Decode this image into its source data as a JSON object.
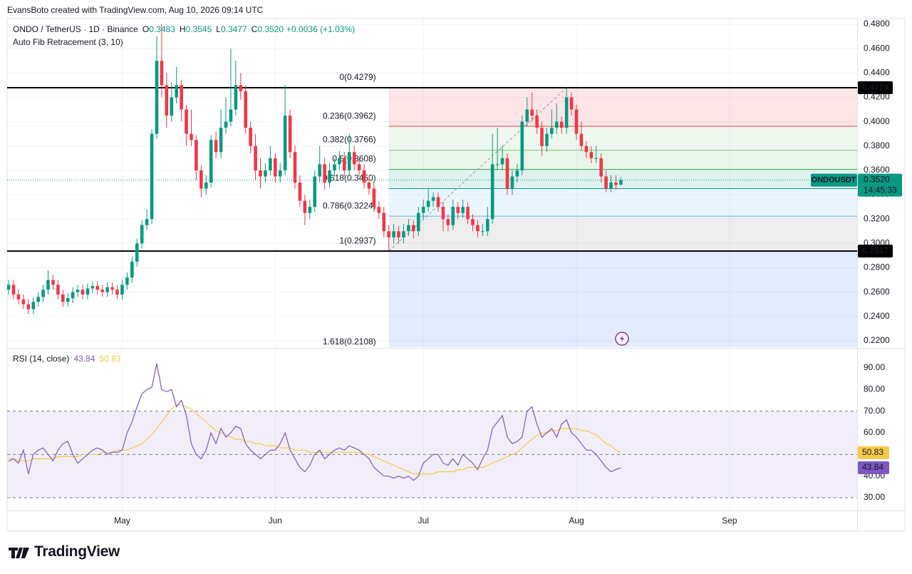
{
  "header": {
    "credit": "EvansBoto created with TradingView.com, Aug 10, 2026 09:14 UTC",
    "brand": "TradingView"
  },
  "chart_data": {
    "type": "candlestick",
    "title": "ONDO / TetherUS · 1D · Binance",
    "indicator": "Auto Fib Retracement (3, 10)",
    "ohlc_labels": [
      {
        "key": "O",
        "value": "0.3483"
      },
      {
        "key": "H",
        "value": "0.3545"
      },
      {
        "key": "L",
        "value": "0.3477"
      },
      {
        "key": "C",
        "value": "0.3520"
      }
    ],
    "change_label": "+0.0036 (+1.03%)",
    "up_color": "#089981",
    "down_color": "#f23645",
    "candles": [
      [
        0.262,
        0.27,
        0.258,
        0.266
      ],
      [
        0.266,
        0.27,
        0.254,
        0.258
      ],
      [
        0.258,
        0.262,
        0.25,
        0.254
      ],
      [
        0.254,
        0.258,
        0.246,
        0.25
      ],
      [
        0.25,
        0.254,
        0.242,
        0.246
      ],
      [
        0.246,
        0.256,
        0.242,
        0.252
      ],
      [
        0.252,
        0.26,
        0.248,
        0.256
      ],
      [
        0.256,
        0.266,
        0.252,
        0.262
      ],
      [
        0.262,
        0.278,
        0.258,
        0.27
      ],
      [
        0.27,
        0.274,
        0.262,
        0.266
      ],
      [
        0.266,
        0.27,
        0.254,
        0.258
      ],
      [
        0.258,
        0.262,
        0.248,
        0.252
      ],
      [
        0.252,
        0.259,
        0.248,
        0.255
      ],
      [
        0.255,
        0.264,
        0.251,
        0.26
      ],
      [
        0.26,
        0.266,
        0.256,
        0.262
      ],
      [
        0.262,
        0.266,
        0.254,
        0.258
      ],
      [
        0.258,
        0.267,
        0.254,
        0.263
      ],
      [
        0.263,
        0.269,
        0.259,
        0.265
      ],
      [
        0.265,
        0.269,
        0.258,
        0.262
      ],
      [
        0.262,
        0.266,
        0.256,
        0.26
      ],
      [
        0.26,
        0.268,
        0.256,
        0.264
      ],
      [
        0.264,
        0.268,
        0.258,
        0.262
      ],
      [
        0.262,
        0.266,
        0.254,
        0.258
      ],
      [
        0.258,
        0.27,
        0.254,
        0.266
      ],
      [
        0.266,
        0.276,
        0.262,
        0.272
      ],
      [
        0.272,
        0.289,
        0.268,
        0.285
      ],
      [
        0.285,
        0.304,
        0.281,
        0.3
      ],
      [
        0.3,
        0.319,
        0.296,
        0.315
      ],
      [
        0.315,
        0.328,
        0.311,
        0.32
      ],
      [
        0.32,
        0.394,
        0.316,
        0.39
      ],
      [
        0.39,
        0.47,
        0.386,
        0.45
      ],
      [
        0.45,
        0.48,
        0.42,
        0.43
      ],
      [
        0.43,
        0.44,
        0.395,
        0.405
      ],
      [
        0.405,
        0.432,
        0.4,
        0.42
      ],
      [
        0.42,
        0.445,
        0.415,
        0.43
      ],
      [
        0.43,
        0.434,
        0.4,
        0.41
      ],
      [
        0.41,
        0.414,
        0.38,
        0.39
      ],
      [
        0.39,
        0.41,
        0.38,
        0.385
      ],
      [
        0.385,
        0.389,
        0.352,
        0.36
      ],
      [
        0.36,
        0.364,
        0.338,
        0.345
      ],
      [
        0.345,
        0.356,
        0.34,
        0.35
      ],
      [
        0.35,
        0.389,
        0.346,
        0.385
      ],
      [
        0.385,
        0.392,
        0.37,
        0.375
      ],
      [
        0.375,
        0.41,
        0.37,
        0.395
      ],
      [
        0.395,
        0.42,
        0.39,
        0.4
      ],
      [
        0.4,
        0.46,
        0.396,
        0.41
      ],
      [
        0.41,
        0.45,
        0.405,
        0.43
      ],
      [
        0.43,
        0.44,
        0.418,
        0.425
      ],
      [
        0.425,
        0.43,
        0.39,
        0.395
      ],
      [
        0.395,
        0.4,
        0.374,
        0.38
      ],
      [
        0.38,
        0.39,
        0.352,
        0.36
      ],
      [
        0.36,
        0.37,
        0.345,
        0.355
      ],
      [
        0.355,
        0.366,
        0.35,
        0.36
      ],
      [
        0.36,
        0.38,
        0.356,
        0.37
      ],
      [
        0.37,
        0.374,
        0.35,
        0.355
      ],
      [
        0.355,
        0.366,
        0.35,
        0.36
      ],
      [
        0.36,
        0.43,
        0.356,
        0.405
      ],
      [
        0.405,
        0.41,
        0.37,
        0.375
      ],
      [
        0.375,
        0.38,
        0.345,
        0.35
      ],
      [
        0.35,
        0.356,
        0.33,
        0.335
      ],
      [
        0.335,
        0.34,
        0.315,
        0.325
      ],
      [
        0.325,
        0.336,
        0.32,
        0.33
      ],
      [
        0.33,
        0.36,
        0.326,
        0.355
      ],
      [
        0.355,
        0.38,
        0.35,
        0.365
      ],
      [
        0.365,
        0.37,
        0.344,
        0.35
      ],
      [
        0.35,
        0.366,
        0.346,
        0.36
      ],
      [
        0.36,
        0.37,
        0.355,
        0.365
      ],
      [
        0.365,
        0.376,
        0.36,
        0.37
      ],
      [
        0.37,
        0.375,
        0.355,
        0.36
      ],
      [
        0.36,
        0.39,
        0.356,
        0.375
      ],
      [
        0.375,
        0.38,
        0.36,
        0.365
      ],
      [
        0.365,
        0.37,
        0.355,
        0.36
      ],
      [
        0.36,
        0.365,
        0.345,
        0.35
      ],
      [
        0.35,
        0.356,
        0.34,
        0.345
      ],
      [
        0.345,
        0.35,
        0.326,
        0.33
      ],
      [
        0.33,
        0.335,
        0.32,
        0.325
      ],
      [
        0.325,
        0.33,
        0.305,
        0.31
      ],
      [
        0.31,
        0.315,
        0.294,
        0.305
      ],
      [
        0.305,
        0.316,
        0.3,
        0.31
      ],
      [
        0.31,
        0.314,
        0.3,
        0.305
      ],
      [
        0.305,
        0.316,
        0.3,
        0.31
      ],
      [
        0.31,
        0.32,
        0.306,
        0.315
      ],
      [
        0.315,
        0.319,
        0.304,
        0.31
      ],
      [
        0.31,
        0.33,
        0.306,
        0.325
      ],
      [
        0.325,
        0.336,
        0.32,
        0.33
      ],
      [
        0.33,
        0.345,
        0.326,
        0.335
      ],
      [
        0.335,
        0.342,
        0.33,
        0.338
      ],
      [
        0.338,
        0.342,
        0.326,
        0.33
      ],
      [
        0.33,
        0.334,
        0.31,
        0.32
      ],
      [
        0.32,
        0.324,
        0.31,
        0.315
      ],
      [
        0.315,
        0.336,
        0.311,
        0.33
      ],
      [
        0.33,
        0.334,
        0.32,
        0.325
      ],
      [
        0.325,
        0.336,
        0.321,
        0.33
      ],
      [
        0.33,
        0.334,
        0.316,
        0.32
      ],
      [
        0.32,
        0.324,
        0.31,
        0.315
      ],
      [
        0.315,
        0.319,
        0.305,
        0.31
      ],
      [
        0.31,
        0.316,
        0.306,
        0.31
      ],
      [
        0.31,
        0.33,
        0.306,
        0.32
      ],
      [
        0.32,
        0.39,
        0.316,
        0.365
      ],
      [
        0.365,
        0.395,
        0.36,
        0.365
      ],
      [
        0.365,
        0.38,
        0.36,
        0.37
      ],
      [
        0.37,
        0.374,
        0.34,
        0.345
      ],
      [
        0.345,
        0.36,
        0.34,
        0.355
      ],
      [
        0.355,
        0.365,
        0.35,
        0.36
      ],
      [
        0.36,
        0.405,
        0.356,
        0.4
      ],
      [
        0.4,
        0.42,
        0.396,
        0.41
      ],
      [
        0.41,
        0.424,
        0.4,
        0.405
      ],
      [
        0.405,
        0.41,
        0.39,
        0.395
      ],
      [
        0.395,
        0.4,
        0.372,
        0.38
      ],
      [
        0.38,
        0.395,
        0.375,
        0.39
      ],
      [
        0.39,
        0.41,
        0.386,
        0.395
      ],
      [
        0.395,
        0.415,
        0.39,
        0.4
      ],
      [
        0.4,
        0.404,
        0.39,
        0.395
      ],
      [
        0.395,
        0.428,
        0.39,
        0.42
      ],
      [
        0.42,
        0.424,
        0.405,
        0.41
      ],
      [
        0.41,
        0.414,
        0.385,
        0.39
      ],
      [
        0.39,
        0.4,
        0.376,
        0.38
      ],
      [
        0.38,
        0.384,
        0.37,
        0.375
      ],
      [
        0.375,
        0.38,
        0.366,
        0.37
      ],
      [
        0.37,
        0.38,
        0.366,
        0.37
      ],
      [
        0.37,
        0.374,
        0.35,
        0.355
      ],
      [
        0.355,
        0.36,
        0.342,
        0.345
      ],
      [
        0.345,
        0.356,
        0.342,
        0.35
      ],
      [
        0.35,
        0.356,
        0.344,
        0.348
      ],
      [
        0.3483,
        0.3545,
        0.3477,
        0.352
      ]
    ],
    "xlim": [
      -0.3,
      171.85
    ],
    "xticks": [
      {
        "value": 23,
        "label": "May"
      },
      {
        "value": 54,
        "label": "Jun"
      },
      {
        "value": 84,
        "label": "Jul"
      },
      {
        "value": 115,
        "label": "Aug"
      },
      {
        "value": 146,
        "label": "Sep"
      }
    ],
    "ylim": [
      0.2147,
      0.4847
    ],
    "yticks": [
      {
        "value": 0.48,
        "label": "0.4800"
      },
      {
        "value": 0.46,
        "label": "0.4600"
      },
      {
        "value": 0.44,
        "label": "0.4400"
      },
      {
        "value": 0.42,
        "label": "0.4200"
      },
      {
        "value": 0.4,
        "label": "0.4000"
      },
      {
        "value": 0.38,
        "label": "0.3800"
      },
      {
        "value": 0.36,
        "label": "0.3600"
      },
      {
        "value": 0.34,
        "label": "0.3400"
      },
      {
        "value": 0.32,
        "label": "0.3200"
      },
      {
        "value": 0.3,
        "label": "0.3000"
      },
      {
        "value": 0.28,
        "label": "0.2800"
      },
      {
        "value": 0.26,
        "label": "0.2600"
      },
      {
        "value": 0.24,
        "label": "0.2400"
      },
      {
        "value": 0.22,
        "label": "0.2200"
      }
    ],
    "grid": true,
    "fib": {
      "start": 77,
      "levels": [
        {
          "price": 0.4279,
          "label": "0(0.4279)",
          "color": "#787b86"
        },
        {
          "price": 0.3962,
          "label": "0.236(0.3962)",
          "color": "#f23645"
        },
        {
          "price": 0.3766,
          "label": "0.382(0.3766)",
          "color": "#81c784"
        },
        {
          "price": 0.3608,
          "label": "0.5(0.3608)",
          "color": "#4caf50"
        },
        {
          "price": 0.345,
          "label": "0.618(0.3450)",
          "color": "#089981"
        },
        {
          "price": 0.3224,
          "label": "0.786(0.3224)",
          "color": "#64b5f6"
        },
        {
          "price": 0.2937,
          "label": "1(0.2937)",
          "color": "#787b86"
        },
        {
          "price": 0.2108,
          "label": "1.618(0.2108)",
          "color": "#2962ff"
        }
      ]
    },
    "horizontal_lines": [
      {
        "value": 0.4279,
        "label": "0.4279"
      },
      {
        "value": 0.2937,
        "label": "0.2937"
      }
    ],
    "last_price": {
      "value": 0.352,
      "label": "0.3520",
      "symbol": "ONDOUSDT",
      "countdown": "14:45:33"
    },
    "rsi": {
      "title": "RSI (14, close)",
      "ylim": [
        24.07,
        98.57
      ],
      "yticks": [
        {
          "value": 90,
          "label": "90.00"
        },
        {
          "value": 80,
          "label": "80.00"
        },
        {
          "value": 70,
          "label": "70.00"
        },
        {
          "value": 60,
          "label": "60.00"
        },
        {
          "value": 50,
          "label": "50.00"
        },
        {
          "value": 40,
          "label": "40.00"
        },
        {
          "value": 30,
          "label": "30.00"
        }
      ],
      "band": [
        30,
        70
      ],
      "midline": 50,
      "series": [
        {
          "color": "#7e57c2",
          "last_label": "43.84",
          "values": [
            47,
            48,
            46,
            52,
            41,
            50,
            52,
            53,
            50,
            47,
            52,
            55,
            56,
            50,
            46,
            48,
            50,
            52,
            53,
            52,
            50,
            51,
            51,
            52,
            60,
            65,
            72,
            78,
            80,
            81,
            92,
            80,
            79,
            80,
            72,
            75,
            68,
            55,
            50,
            48,
            52,
            60,
            55,
            62,
            58,
            60,
            63,
            62,
            55,
            52,
            50,
            48,
            50,
            52,
            52,
            55,
            60,
            52,
            48,
            44,
            42,
            45,
            50,
            52,
            48,
            50,
            52,
            53,
            52,
            54,
            53,
            52,
            50,
            48,
            44,
            42,
            40,
            40,
            39,
            40,
            39,
            40,
            38,
            40,
            46,
            48,
            50,
            50,
            46,
            45,
            48,
            45,
            50,
            48,
            46,
            43,
            48,
            52,
            62,
            65,
            68,
            58,
            55,
            56,
            58,
            70,
            72,
            64,
            58,
            60,
            62,
            58,
            64,
            66,
            60,
            58,
            55,
            52,
            52,
            50,
            47,
            44,
            42,
            43,
            43.84
          ]
        },
        {
          "color": "#f7c948",
          "last_label": "50.83",
          "values": [
            48,
            48,
            47,
            47,
            47,
            48,
            48,
            48,
            48,
            48,
            49,
            49,
            49,
            49,
            49,
            50,
            50,
            50,
            50,
            51,
            51,
            51,
            52,
            52,
            52,
            53,
            54,
            55,
            57,
            59,
            62,
            65,
            68,
            71,
            73,
            73,
            72,
            71,
            69,
            67,
            65,
            63,
            61,
            60,
            59,
            58,
            57,
            57,
            56,
            56,
            55,
            55,
            54,
            54,
            54,
            53,
            53,
            53,
            52,
            52,
            52,
            51,
            51,
            51,
            51,
            51,
            51,
            51,
            51,
            51,
            51,
            51,
            50,
            50,
            49,
            48,
            47,
            46,
            45,
            44,
            43,
            42,
            41,
            41,
            41,
            41,
            41,
            42,
            42,
            42,
            42,
            43,
            43,
            44,
            44,
            44,
            44,
            45,
            46,
            47,
            48,
            49,
            50,
            51,
            53,
            55,
            57,
            59,
            60,
            60,
            61,
            61,
            62,
            62,
            62,
            62,
            61,
            61,
            60,
            59,
            57,
            55,
            54,
            52,
            50.83
          ]
        }
      ]
    }
  }
}
